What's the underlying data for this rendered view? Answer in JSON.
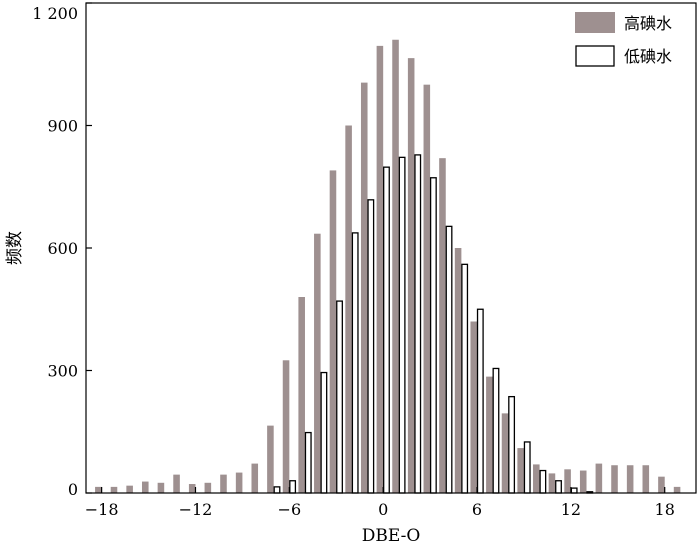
{
  "chart_data": {
    "type": "bar",
    "xlabel": "DBE-O",
    "ylabel": "频数",
    "xlim": [
      -19,
      20
    ],
    "ylim": [
      0,
      1200
    ],
    "xticks": [
      -18,
      -12,
      -6,
      0,
      6,
      12,
      18
    ],
    "xtick_labels": [
      "−18",
      "−12",
      "−6",
      "0",
      "6",
      "12",
      "18"
    ],
    "yticks": [
      0,
      300,
      600,
      900,
      1200
    ],
    "ytick_labels": [
      "0",
      "300",
      "600",
      "900",
      "1 200"
    ],
    "grid": false,
    "legend_position": "top-right",
    "x": [
      -18,
      -17,
      -16,
      -15,
      -14,
      -13,
      -12,
      -11,
      -10,
      -9,
      -8,
      -7,
      -6,
      -5,
      -4,
      -3,
      -2,
      -1,
      0,
      1,
      2,
      3,
      4,
      5,
      6,
      7,
      8,
      9,
      10,
      11,
      12,
      13,
      14,
      15,
      16,
      17,
      18,
      19
    ],
    "series": [
      {
        "name": "高碘水",
        "color": "#9e9090",
        "style": "filled",
        "values": [
          15,
          15,
          18,
          28,
          25,
          45,
          22,
          25,
          45,
          50,
          72,
          165,
          325,
          480,
          635,
          790,
          900,
          1005,
          1095,
          1110,
          1065,
          1000,
          820,
          600,
          420,
          285,
          195,
          110,
          70,
          48,
          58,
          55,
          72,
          68,
          68,
          68,
          40,
          15
        ]
      },
      {
        "name": "低碘水",
        "color": "#ffffff",
        "style": "outline",
        "values": [
          0,
          0,
          0,
          0,
          0,
          0,
          0,
          0,
          0,
          0,
          0,
          15,
          30,
          148,
          295,
          470,
          637,
          718,
          798,
          822,
          828,
          772,
          653,
          560,
          450,
          305,
          236,
          125,
          55,
          30,
          12,
          3,
          0,
          0,
          0,
          0,
          0,
          0
        ]
      }
    ]
  }
}
